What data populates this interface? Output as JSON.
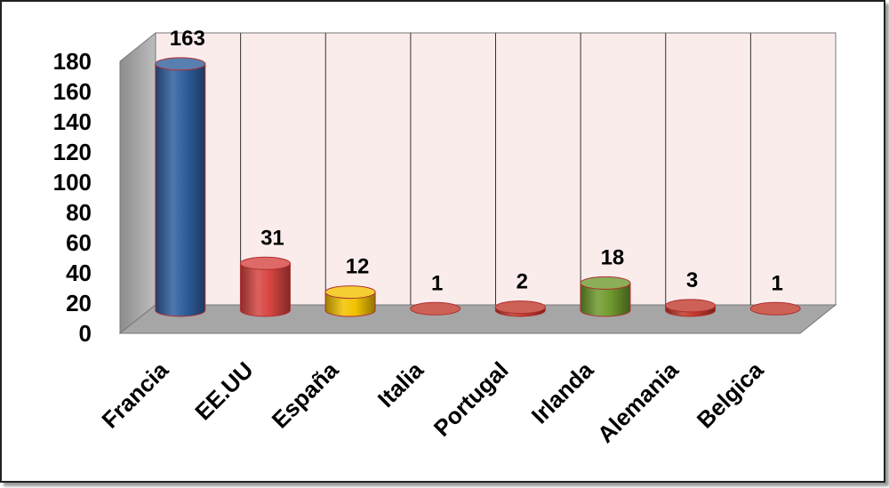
{
  "chart_data": {
    "type": "bar",
    "categories": [
      "Francia",
      "EE.UU",
      "España",
      "Italia",
      "Portugal",
      "Irlanda",
      "Alemania",
      "Belgica"
    ],
    "values": [
      163,
      31,
      12,
      1,
      2,
      18,
      3,
      1
    ],
    "ylim": [
      0,
      180
    ],
    "yticks": [
      0,
      20,
      40,
      60,
      80,
      100,
      120,
      140,
      160,
      180
    ],
    "grid": true,
    "bar_colors": [
      "#2f5f9e",
      "#d64541",
      "#f2c200",
      "#c0392b",
      "#c0392b",
      "#6f9a2e",
      "#c0392b",
      "#c0392b"
    ],
    "wall_color": "#fbecec",
    "floor_color": "#a6a6a6"
  }
}
